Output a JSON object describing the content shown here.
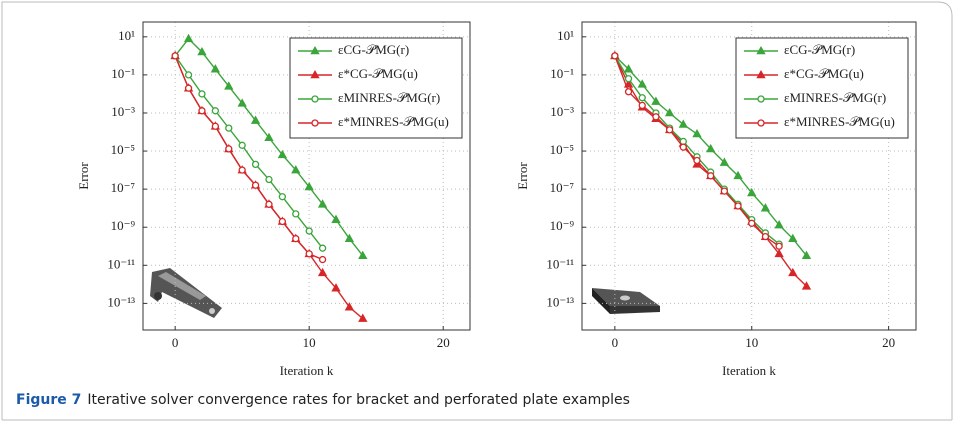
{
  "chart_data": [
    {
      "type": "line",
      "ylabel": "Error",
      "xlabel": "Iteration k",
      "log_y": true,
      "grid": true,
      "legend": "upper right",
      "xlim": [
        -2.4,
        22
      ],
      "xticks": [
        0,
        10,
        20
      ],
      "ylim": [
        4e-15,
        60
      ],
      "yticks": [
        {
          "value": 10,
          "label": "10¹"
        },
        {
          "value": 0.1,
          "label": "10⁻¹"
        },
        {
          "value": 0.001,
          "label": "10⁻³"
        },
        {
          "value": 1e-05,
          "label": "10⁻⁵"
        },
        {
          "value": 1e-07,
          "label": "10⁻⁷"
        },
        {
          "value": 1e-09,
          "label": "10⁻⁹"
        },
        {
          "value": 1e-11,
          "label": "10⁻¹¹"
        },
        {
          "value": 1e-13,
          "label": "10⁻¹³"
        }
      ],
      "series": [
        {
          "name": "εCG-𝒫MG(r)",
          "color": "#3aa53a",
          "marker": "triangle",
          "x": [
            0,
            1,
            2,
            3,
            4,
            5,
            6,
            7,
            8,
            9,
            10,
            11,
            12,
            13,
            14
          ],
          "values": [
            1,
            7.9,
            1.6,
            0.2,
            0.025,
            0.0032,
            0.0004,
            5e-05,
            6.3e-06,
            1e-06,
            1.3e-07,
            1.6e-08,
            2.5e-09,
            2.5e-10,
            3.2e-11
          ]
        },
        {
          "name": "ε*CG-𝒫MG(u)",
          "color": "#d62728",
          "marker": "triangle",
          "x": [
            0,
            1,
            2,
            3,
            4,
            5,
            6,
            7,
            8,
            9,
            10,
            11,
            12,
            13,
            14
          ],
          "values": [
            1,
            0.02,
            0.0013,
            0.0002,
            1.3e-05,
            1e-06,
            1.6e-07,
            1.6e-08,
            2e-09,
            2.5e-10,
            4e-11,
            4e-12,
            6.3e-13,
            6.3e-14,
            1.6e-14
          ]
        },
        {
          "name": "εMINRES-𝒫MG(r)",
          "color": "#3aa53a",
          "marker": "circle",
          "x": [
            0,
            1,
            2,
            3,
            4,
            5,
            6,
            7,
            8,
            9,
            10,
            11
          ],
          "values": [
            1,
            0.1,
            0.01,
            0.0013,
            0.00016,
            2e-05,
            2e-06,
            3.2e-07,
            4e-08,
            5e-09,
            6.3e-10,
            7.9e-11
          ]
        },
        {
          "name": "ε*MINRES-𝒫MG(u)",
          "color": "#d62728",
          "marker": "circle",
          "x": [
            0,
            1,
            2,
            3,
            4,
            5,
            6,
            7,
            8,
            9,
            10,
            11
          ],
          "values": [
            1,
            0.02,
            0.0013,
            0.0002,
            1.3e-05,
            1e-06,
            1.6e-07,
            1.6e-08,
            2e-09,
            2.5e-10,
            4e-11,
            2e-11
          ]
        }
      ]
    },
    {
      "type": "line",
      "ylabel": "Error",
      "xlabel": "Iteration k",
      "log_y": true,
      "grid": true,
      "legend": "upper right",
      "xlim": [
        -2.4,
        22
      ],
      "xticks": [
        0,
        10,
        20
      ],
      "ylim": [
        4e-15,
        60
      ],
      "yticks": [
        {
          "value": 10,
          "label": "10¹"
        },
        {
          "value": 0.1,
          "label": "10⁻¹"
        },
        {
          "value": 0.001,
          "label": "10⁻³"
        },
        {
          "value": 1e-05,
          "label": "10⁻⁵"
        },
        {
          "value": 1e-07,
          "label": "10⁻⁷"
        },
        {
          "value": 1e-09,
          "label": "10⁻⁹"
        },
        {
          "value": 1e-11,
          "label": "10⁻¹¹"
        },
        {
          "value": 1e-13,
          "label": "10⁻¹³"
        }
      ],
      "series": [
        {
          "name": "εCG-𝒫MG(r)",
          "color": "#3aa53a",
          "marker": "triangle",
          "x": [
            0,
            1,
            2,
            3,
            4,
            5,
            6,
            7,
            8,
            9,
            10,
            11,
            12,
            13,
            14
          ],
          "values": [
            1,
            0.2,
            0.032,
            0.004,
            0.001,
            0.00025,
            7.9e-05,
            1.3e-05,
            2.5e-06,
            5e-07,
            6.3e-08,
            1e-08,
            1.3e-09,
            2.5e-10,
            3.2e-11
          ]
        },
        {
          "name": "ε*CG-𝒫MG(u)",
          "color": "#d62728",
          "marker": "triangle",
          "x": [
            0,
            1,
            2,
            3,
            4,
            5,
            6,
            7,
            8,
            9,
            10,
            11,
            12,
            13,
            14
          ],
          "values": [
            1,
            0.032,
            0.002,
            0.0005,
            0.00013,
            2.5e-05,
            2e-06,
            5e-07,
            7.9e-08,
            1.3e-08,
            2e-09,
            3.2e-10,
            4e-11,
            4e-12,
            7.9e-13
          ]
        },
        {
          "name": "εMINRES-𝒫MG(r)",
          "color": "#3aa53a",
          "marker": "circle",
          "x": [
            0,
            1,
            2,
            3,
            4,
            5,
            6,
            7,
            8,
            9,
            10,
            11,
            12
          ],
          "values": [
            1,
            0.063,
            0.0063,
            0.001,
            0.00016,
            3.2e-05,
            5e-06,
            7.9e-07,
            1e-07,
            1.6e-08,
            2.5e-09,
            5e-10,
            1.3e-10
          ]
        },
        {
          "name": "ε*MINRES-𝒫MG(u)",
          "color": "#d62728",
          "marker": "circle",
          "x": [
            0,
            1,
            2,
            3,
            4,
            5,
            6,
            7,
            8,
            9,
            10,
            11,
            12
          ],
          "values": [
            1,
            0.013,
            0.0025,
            0.00063,
            0.00013,
            1.6e-05,
            3.2e-06,
            5e-07,
            7.9e-08,
            1.3e-08,
            1.6e-09,
            3.2e-10,
            1e-10
          ]
        }
      ]
    }
  ],
  "caption": {
    "label": "Figure 7",
    "text": "Iterative solver convergence rates for bracket and perforated plate examples"
  }
}
